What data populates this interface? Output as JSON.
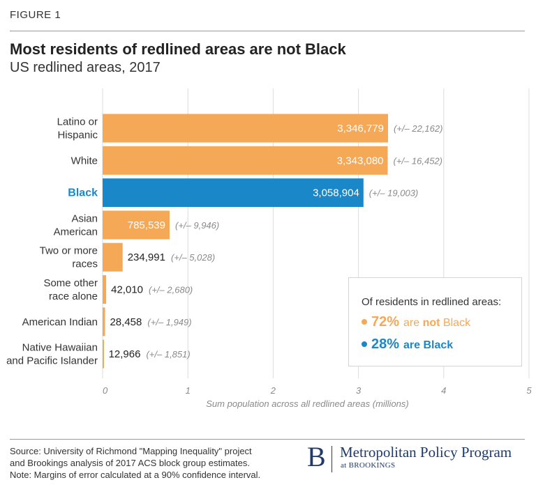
{
  "header": {
    "figure_label": "FIGURE 1",
    "title": "Most residents of redlined areas are not Black",
    "subtitle": "US redlined areas, 2017"
  },
  "chart_data": {
    "type": "bar",
    "orientation": "horizontal",
    "categories": [
      [
        "Latino or",
        "Hispanic"
      ],
      [
        "White"
      ],
      [
        "Black"
      ],
      [
        "Asian",
        "American"
      ],
      [
        "Two or more",
        "races"
      ],
      [
        "Some other",
        "race alone"
      ],
      [
        "American Indian"
      ],
      [
        "Native Hawaiian",
        "and Pacific Islander"
      ]
    ],
    "values": [
      3346779,
      3343080,
      3058904,
      785539,
      234991,
      42010,
      28458,
      12966
    ],
    "value_labels": [
      "3,346,779",
      "3,343,080",
      "3,058,904",
      "785,539",
      "234,991",
      "42,010",
      "28,458",
      "12,966"
    ],
    "moe_labels": [
      "(+/– 22,162)",
      "(+/– 16,452)",
      "(+/– 19,003)",
      "(+/– 9,946)",
      "(+/– 5,028)",
      "(+/– 2,680)",
      "(+/– 1,949)",
      "(+/– 1,851)"
    ],
    "highlight": "Black",
    "colors": {
      "default": "#f5a855",
      "highlight": "#1a87c9",
      "grid": "#dcdcdc"
    },
    "xlabel": "Sum population across all redlined areas (millions)",
    "xlim": [
      0,
      5
    ],
    "xticks": [
      "0",
      "1",
      "2",
      "3",
      "4",
      "5"
    ],
    "grid": true
  },
  "callout": {
    "heading": "Of residents in redlined areas:",
    "not_black_pct": "72%",
    "not_black_text_1": "are",
    "not_black_text_2": "not",
    "not_black_text_3": "Black",
    "black_pct": "28%",
    "black_text": "are Black"
  },
  "footer": {
    "source_line_1": "Source: University of Richmond \"Mapping Inequality\" project",
    "source_line_2": "and Brookings analysis of 2017 ACS block group estimates.",
    "source_line_3": "Note: Margins of error calculated at a 90% confidence interval.",
    "brand_mark": "B",
    "brand_name": "Metropolitan Policy Program",
    "brand_sub": "at BROOKINGS"
  }
}
